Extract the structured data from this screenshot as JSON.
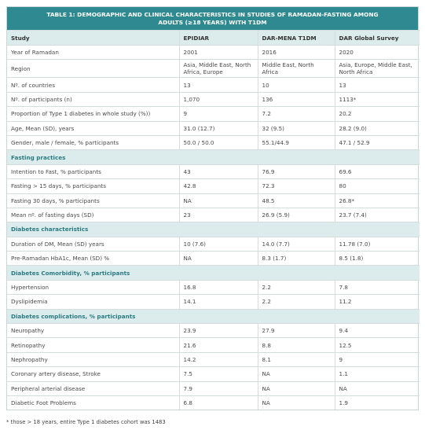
{
  "table": {
    "title": "TABLE 1: DEMOGRAPHIC AND CLINICAL CHARACTERISTICS IN STUDIES OF RAMADAN-FASTING AMONG ADULTS (≥18 YEARS) WITH T1DM",
    "header": [
      "Study",
      "EPIDIAR",
      "DAR-MENA T1DM",
      "DAR Global Survey"
    ],
    "rows": [
      [
        "Year of Ramadan",
        "2001",
        "2016",
        "2020"
      ],
      [
        "Region",
        "Asia, Middle East, North Africa, Europe",
        "Middle East, North Africa",
        "Asia, Europe, Middle East, North Africa"
      ],
      [
        "Nº. of countries",
        "13",
        "10",
        "13"
      ],
      [
        "Nº. of participants (n)",
        "1,070",
        "136",
        "1113*"
      ],
      [
        "Proportion of Type 1 diabetes in whole study (%))",
        "9",
        "7.2",
        "20.2"
      ],
      [
        "Age, Mean (SD), years",
        "31.0 (12.7)",
        "32 (9.5)",
        "28.2 (9.0)"
      ],
      [
        "Gender, male / female, % participants",
        "50.0 / 50.0",
        "55.1/44.9",
        "47.1 / 52.9"
      ],
      [
        "Fasting practices"
      ],
      [
        "Intention to Fast, % participants",
        "43",
        "76.9",
        "69.6"
      ],
      [
        "Fasting > 15 days, % participants",
        "42.8",
        "72.3",
        "80"
      ],
      [
        "Fasting 30 days, % participants",
        "NA",
        "48.5",
        "26.8*"
      ],
      [
        "Mean nº. of fasting days (SD)",
        "23",
        "26.9 (5.9)",
        "23.7 (7.4)"
      ],
      [
        "Diabetes characteristics"
      ],
      [
        "Duration of DM, Mean (SD) years",
        "10 (7.6)",
        "14.0 (7.7)",
        "11.78 (7.0)"
      ],
      [
        "Pre-Ramadan HbA1c, Mean (SD) %",
        "NA",
        "8.3 (1.7)",
        "8.5 (1.8)"
      ],
      [
        "Diabetes Comorbidity, % participants"
      ],
      [
        "Hypertension",
        "16.8",
        "2.2",
        "7.8"
      ],
      [
        "Dyslipidemia",
        "14.1",
        "2.2",
        "11.2"
      ],
      [
        "Diabetes complications, % participants"
      ],
      [
        "Neuropathy",
        "23.9",
        "27.9",
        "9.4"
      ],
      [
        "Retinopathy",
        "21.6",
        "8.8",
        "12.5"
      ],
      [
        "Nephropathy",
        "14.2",
        "8.1",
        "9"
      ],
      [
        "Coronary artery disease, Stroke",
        "7.5",
        "NA",
        "1.1"
      ],
      [
        "Peripheral arterial disease",
        "7.9",
        "NA",
        "NA"
      ],
      [
        "Diabetic Foot Problems",
        "6.8",
        "NA",
        "1.9"
      ]
    ],
    "footnote": "* those > 18 years, entire Type 1 diabetes cohort was 1483"
  }
}
